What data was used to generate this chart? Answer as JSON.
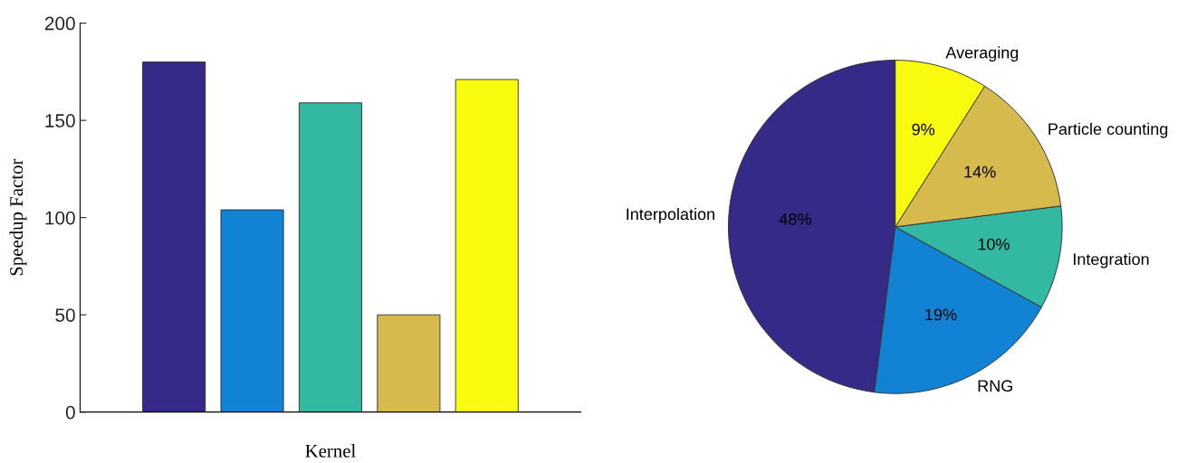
{
  "chart_data": [
    {
      "type": "bar",
      "categories": [
        null,
        null,
        null,
        null,
        null
      ],
      "values": [
        180,
        104,
        159,
        50,
        171
      ],
      "colors": [
        "#352a87",
        "#1283d4",
        "#33b8a1",
        "#d7ba4d",
        "#f9fb0e"
      ],
      "ylim": [
        0,
        200
      ],
      "yticks": [
        0,
        50,
        100,
        150,
        200
      ],
      "ylabel": "Speedup Factor",
      "xlabel": "Kernel",
      "grid": false
    },
    {
      "type": "pie",
      "categories": [
        "Interpolation",
        "RNG",
        "Integration",
        "Particle counting",
        "Averaging"
      ],
      "values": [
        48,
        19,
        10,
        14,
        9
      ],
      "colors": [
        "#352a87",
        "#1283d4",
        "#33b8a1",
        "#d7ba4d",
        "#f9fb0e"
      ],
      "value_labels": [
        "48%",
        "19%",
        "10%",
        "14%",
        "9%"
      ]
    }
  ]
}
